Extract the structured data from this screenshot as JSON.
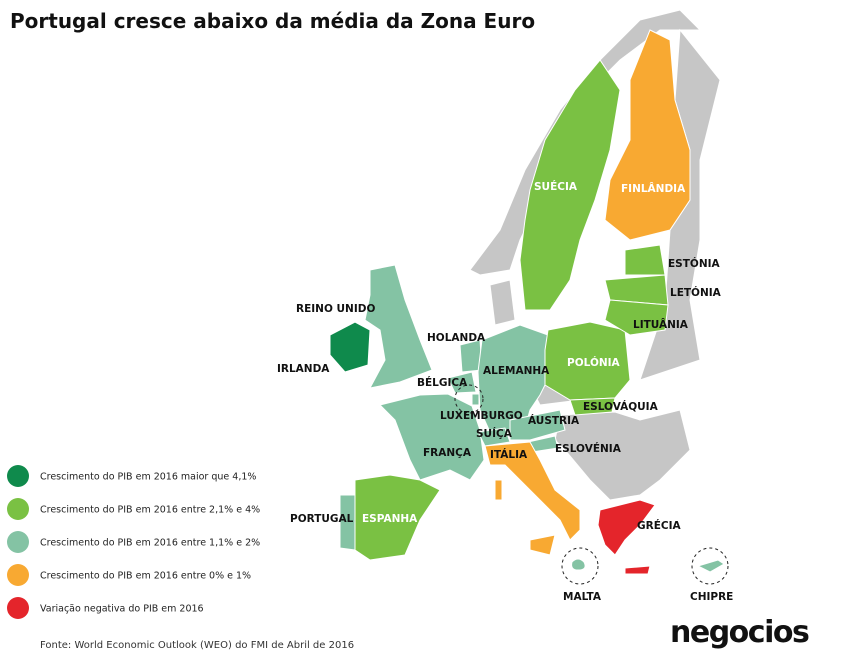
{
  "title": "Portugal cresce abaixo da média da Zona Euro",
  "legend": [
    {
      "label": "Crescimento do PIB em 2016 maior que 4,1%",
      "color": "#0f8a4c"
    },
    {
      "label": "Crescimento do PIB em 2016 entre 2,1% e 4%",
      "color": "#7ac143"
    },
    {
      "label": "Crescimento do PIB em 2016 entre 1,1% e 2%",
      "color": "#84c3a4"
    },
    {
      "label": "Crescimento do PIB em 2016 entre 0% e 1%",
      "color": "#f8a932"
    },
    {
      "label": "Variação negativa do PIB em 2016",
      "color": "#e4252b"
    }
  ],
  "countries": [
    {
      "label": "REINO UNIDO",
      "color": "#84c3a4"
    },
    {
      "label": "IRLANDA",
      "color": "#0f8a4c"
    },
    {
      "label": "HOLANDA",
      "color": "#84c3a4"
    },
    {
      "label": "BÉLGICA",
      "color": "#84c3a4"
    },
    {
      "label": "LUXEMBURGO",
      "color": "#84c3a4"
    },
    {
      "label": "ALEMANHA",
      "color": "#84c3a4"
    },
    {
      "label": "FRANÇA",
      "color": "#84c3a4"
    },
    {
      "label": "SUÍÇA",
      "color": "#84c3a4"
    },
    {
      "label": "ÁUSTRIA",
      "color": "#84c3a4"
    },
    {
      "label": "ESLOVÉNIA",
      "color": "#84c3a4"
    },
    {
      "label": "PORTUGAL",
      "color": "#84c3a4"
    },
    {
      "label": "ESPANHA",
      "color": "#7ac143"
    },
    {
      "label": "ITÁLIA",
      "color": "#f8a932"
    },
    {
      "label": "GRÉCIA",
      "color": "#e4252b"
    },
    {
      "label": "FINLÂNDIA",
      "color": "#f8a932"
    },
    {
      "label": "SUÉCIA",
      "color": "#7ac143"
    },
    {
      "label": "POLÓNIA",
      "color": "#7ac143"
    },
    {
      "label": "ESLOVÁQUIA",
      "color": "#7ac143"
    },
    {
      "label": "ESTÓNIA",
      "color": "#7ac143"
    },
    {
      "label": "LETÓNIA",
      "color": "#7ac143"
    },
    {
      "label": "LITUÂNIA",
      "color": "#7ac143"
    },
    {
      "label": "MALTA",
      "color": "#84c3a4"
    },
    {
      "label": "CHIPRE",
      "color": "#84c3a4"
    }
  ],
  "source": "Fonte: World Economic Outlook (WEO) do FMI de Abril de 2016",
  "logo": "negocios"
}
